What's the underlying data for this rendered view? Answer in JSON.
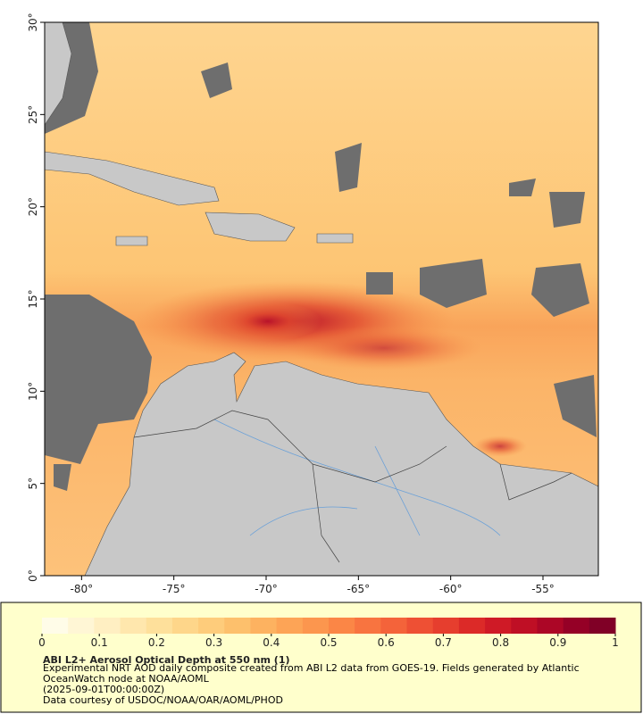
{
  "chart_data": {
    "type": "map",
    "title": "ABI L2+ Aerosol Optical Depth at 550 nm (1)",
    "description": "Experimental NRT AOD daily composite created from ABI L2 data from GOES-19. Fields generated by Atlantic OceanWatch node at NOAA/AOML",
    "timestamp": "(2025-09-01T00:00:00Z)",
    "credit": "Data courtesy of USDOC/NOAA/OAR/AOML/PHOD",
    "xlim": [
      -82,
      -52
    ],
    "ylim": [
      0,
      30
    ],
    "xticks": [
      {
        "value": -80,
        "label": "-80°"
      },
      {
        "value": -75,
        "label": "-75°"
      },
      {
        "value": -70,
        "label": "-70°"
      },
      {
        "value": -65,
        "label": "-65°"
      },
      {
        "value": -60,
        "label": "-60°"
      },
      {
        "value": -55,
        "label": "-55°"
      }
    ],
    "yticks": [
      {
        "value": 0,
        "label": "0°"
      },
      {
        "value": 5,
        "label": "5°"
      },
      {
        "value": 10,
        "label": "10°"
      },
      {
        "value": 15,
        "label": "15°"
      },
      {
        "value": 20,
        "label": "20°"
      },
      {
        "value": 25,
        "label": "25°"
      },
      {
        "value": 30,
        "label": "30°"
      }
    ],
    "colorbar": {
      "range": [
        0,
        1
      ],
      "ticks": [
        0,
        0.1,
        0.2,
        0.3,
        0.4,
        0.5,
        0.6,
        0.7,
        0.8,
        0.9,
        1
      ],
      "colors": [
        "#fffce8",
        "#fff6d5",
        "#ffefc2",
        "#ffe7ad",
        "#fee09b",
        "#fed68a",
        "#fecc7b",
        "#fdc06c",
        "#fdb260",
        "#fda456",
        "#fc964e",
        "#fb8646",
        "#f87440",
        "#f4633a",
        "#ee5034",
        "#e63e2e",
        "#dc2a28",
        "#cf1a26",
        "#bf0f25",
        "#ac0626",
        "#950026",
        "#800026"
      ]
    }
  }
}
